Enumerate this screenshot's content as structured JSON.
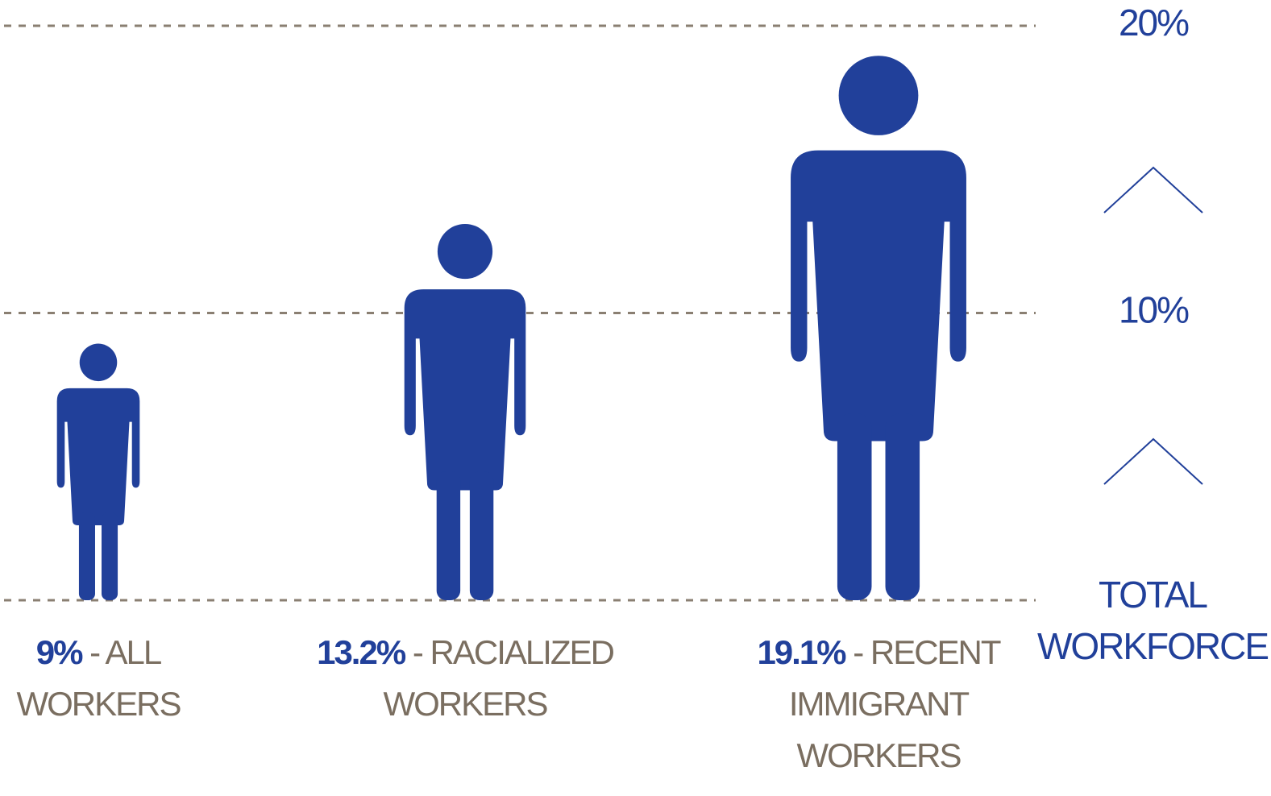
{
  "chart_data": {
    "type": "pictogram",
    "categories": [
      "ALL WORKERS",
      "RACIALIZED WORKERS",
      "RECENT IMMIGRANT WORKERS"
    ],
    "values": [
      9,
      13.2,
      19.1
    ],
    "value_labels": [
      "9%",
      "13.2%",
      "19.1%"
    ],
    "color": "#21409a",
    "ylim": [
      0,
      20
    ],
    "yticks": [
      {
        "value": 10,
        "label": "10%"
      },
      {
        "value": 20,
        "label": "20%"
      }
    ],
    "ylabel": "TOTAL WORKFORCE",
    "grid": true
  }
}
